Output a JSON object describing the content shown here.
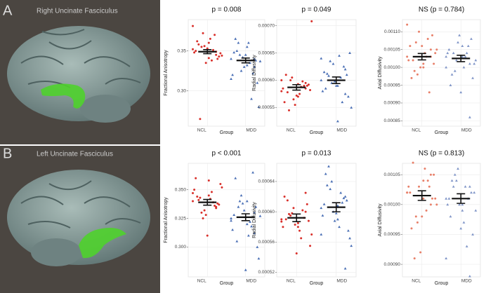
{
  "panels": [
    {
      "label": "A",
      "title": "Right Uncinate Fasciculus"
    },
    {
      "label": "B",
      "title": "Left Uncinate Fasciculus"
    }
  ],
  "chart_data": [
    {
      "type": "strip",
      "title": "p = 0.008",
      "ylabel": "Fractional Anisotropy",
      "xlabel": "Group",
      "categories": [
        "NCL",
        "MDD"
      ],
      "groups": [
        {
          "color": "#d9302b",
          "marker": "circle",
          "mean": 0.349,
          "se": 0.0025,
          "values": [
            0.352,
            0.345,
            0.36,
            0.355,
            0.348,
            0.34,
            0.365,
            0.372,
            0.35,
            0.343,
            0.338,
            0.356,
            0.362,
            0.347,
            0.351,
            0.335,
            0.358,
            0.344,
            0.37,
            0.353,
            0.265,
            0.381,
            0.349,
            0.341
          ]
        },
        {
          "color": "#4a6fb5",
          "marker": "triangle",
          "mean": 0.338,
          "se": 0.003,
          "values": [
            0.34,
            0.33,
            0.355,
            0.345,
            0.32,
            0.338,
            0.36,
            0.325,
            0.348,
            0.31,
            0.335,
            0.342,
            0.365,
            0.28,
            0.29,
            0.33,
            0.35,
            0.337,
            0.322,
            0.345,
            0.36,
            0.315,
            0.34,
            0.332
          ]
        }
      ],
      "ylim": [
        0.256,
        0.389
      ],
      "yticks": [
        {
          "value": 0.3,
          "label": "0.30"
        },
        0.35
      ],
      "grid": true
    },
    {
      "type": "strip",
      "title": "p = 0.049",
      "ylabel": "Radial Diffusivity",
      "xlabel": "Group",
      "categories": [
        "NCL",
        "MDD"
      ],
      "groups": [
        {
          "color": "#d9302b",
          "marker": "circle",
          "mean": 0.000587,
          "se": 5e-06,
          "values": [
            0.00058,
            0.000595,
            0.00057,
            0.0006,
            0.000585,
            0.00059,
            0.000575,
            0.000605,
            0.00056,
            0.000592,
            0.000588,
            0.000565,
            0.00061,
            0.000582,
            0.000598,
            0.000555,
            0.000578,
            0.000708,
            0.00059,
            0.000572,
            0.000545,
            0.0006,
            0.000585,
            0.000593
          ]
        },
        {
          "color": "#4a6fb5",
          "marker": "triangle",
          "mean": 0.0006,
          "se": 6e-06,
          "values": [
            0.0006,
            0.00062,
            0.00059,
            0.000635,
            0.00058,
            0.00061,
            0.000645,
            0.000595,
            0.000615,
            0.00057,
            0.000605,
            0.00063,
            0.000585,
            0.00065,
            0.00056,
            0.000598,
            0.000612,
            0.00055,
            0.000625,
            0.00059,
            0.000608,
            0.00064,
            0.000575,
            0.000525
          ]
        }
      ],
      "ylim": [
        0.000516,
        0.000711
      ],
      "yticks": [
        0.00055,
        {
          "value": 0.0006,
          "label": "0.00060"
        },
        0.00065,
        {
          "value": 0.0007,
          "label": "0.00070"
        }
      ],
      "grid": true
    },
    {
      "type": "strip",
      "title": "NS (p = 0.784)",
      "ylabel": "Axial Diffusivity",
      "xlabel": "Group",
      "categories": [
        "NCL",
        "MDD"
      ],
      "groups": [
        {
          "color": "#e8806a",
          "marker": "circle",
          "mean": 0.00103,
          "se": 9e-06,
          "values": [
            0.00103,
            0.00105,
            0.001,
            0.00107,
            0.00102,
            0.00109,
            0.00104,
            0.00098,
            0.00106,
            0.00101,
            0.00103,
            0.0011,
            0.00097,
            0.00104,
            0.00108,
            0.001,
            0.00102,
            0.00105,
            0.00093,
            0.00106,
            0.00099,
            0.00112,
            0.00103,
            0.00101
          ]
        },
        {
          "color": "#8196c8",
          "marker": "triangle",
          "mean": 0.001025,
          "se": 9e-06,
          "values": [
            0.00103,
            0.00101,
            0.00106,
            0.00099,
            0.00104,
            0.00108,
            0.001,
            0.00102,
            0.00105,
            0.00097,
            0.00103,
            0.00107,
            0.00095,
            0.00101,
            0.00104,
            0.00109,
            0.00098,
            0.00102,
            0.00106,
            0.00093,
            0.00104,
            0.001,
            0.00086,
            0.00103
          ]
        }
      ],
      "ylim": [
        0.000835,
        0.001134
      ],
      "yticks": [
        0.00085,
        {
          "value": 0.0009,
          "label": "0.00090"
        },
        0.00095,
        {
          "value": 0.001,
          "label": "0.00100"
        },
        0.00105,
        {
          "value": 0.0011,
          "label": "0.00110"
        }
      ],
      "grid": true
    },
    {
      "type": "strip",
      "title": "p < 0.001",
      "ylabel": "Fractional Anisotropy",
      "xlabel": "Group",
      "categories": [
        "NCL",
        "MDD"
      ],
      "groups": [
        {
          "color": "#d9302b",
          "marker": "circle",
          "mean": 0.339,
          "se": 0.0025,
          "values": [
            0.34,
            0.335,
            0.345,
            0.33,
            0.35,
            0.338,
            0.342,
            0.325,
            0.36,
            0.337,
            0.348,
            0.332,
            0.344,
            0.355,
            0.339,
            0.328,
            0.341,
            0.352,
            0.336,
            0.31,
            0.343,
            0.347,
            0.334,
            0.358
          ]
        },
        {
          "color": "#4a6fb5",
          "marker": "triangle",
          "mean": 0.326,
          "se": 0.003,
          "values": [
            0.325,
            0.33,
            0.32,
            0.34,
            0.315,
            0.335,
            0.31,
            0.345,
            0.328,
            0.3,
            0.322,
            0.338,
            0.36,
            0.29,
            0.318,
            0.332,
            0.305,
            0.327,
            0.365,
            0.28,
            0.335,
            0.323,
            0.312,
            0.34
          ]
        }
      ],
      "ylim": [
        0.274,
        0.373
      ],
      "yticks": [
        {
          "value": 0.3,
          "label": "0.300"
        },
        0.325,
        {
          "value": 0.35,
          "label": "0.350"
        }
      ],
      "grid": true
    },
    {
      "type": "strip",
      "title": "p = 0.013",
      "ylabel": "Radial Diffusivity",
      "xlabel": "Group",
      "categories": [
        "NCL",
        "MDD"
      ],
      "groups": [
        {
          "color": "#d9302b",
          "marker": "circle",
          "mean": 0.000592,
          "se": 5e-06,
          "values": [
            0.00059,
            0.0006,
            0.000585,
            0.000595,
            0.00058,
            0.00061,
            0.000575,
            0.000598,
            0.00062,
            0.000588,
            0.000565,
            0.000605,
            0.00059,
            0.000555,
            0.000602,
            0.000583,
            0.000615,
            0.00057,
            0.000592,
            0.000545,
            0.000597,
            0.000587,
            0.000625,
            0.00058
          ]
        },
        {
          "color": "#4a6fb5",
          "marker": "triangle",
          "mean": 0.000606,
          "se": 6e-06,
          "values": [
            0.000605,
            0.00062,
            0.00059,
            0.00063,
            0.000595,
            0.000615,
            0.00058,
            0.00064,
            0.00061,
            0.000575,
            0.000625,
            0.0006,
            0.00065,
            0.000565,
            0.000612,
            0.000588,
            0.000635,
            0.000555,
            0.000618,
            0.000598,
            0.00066,
            0.00057,
            0.000525,
            0.000608
          ]
        }
      ],
      "ylim": [
        0.000514,
        0.000664
      ],
      "yticks": [
        0.00052,
        0.00056,
        {
          "value": 0.0006,
          "label": "0.00060"
        },
        0.00064
      ],
      "grid": true
    },
    {
      "type": "strip",
      "title": "NS (p = 0.813)",
      "ylabel": "Axial Diffusivity",
      "xlabel": "Group",
      "categories": [
        "NCL",
        "MDD"
      ],
      "groups": [
        {
          "color": "#e8806a",
          "marker": "circle",
          "mean": 0.001015,
          "se": 8e-06,
          "values": [
            0.00102,
            0.001,
            0.00104,
            0.00098,
            0.00103,
            0.00101,
            0.00106,
            0.00097,
            0.00102,
            0.00105,
            0.00099,
            0.00103,
            0.00096,
            0.00101,
            0.00104,
            0.00092,
            0.00107,
            0.001,
            0.00103,
            0.00098,
            0.00091,
            0.00102,
            0.00105,
            0.00101
          ]
        },
        {
          "color": "#8196c8",
          "marker": "triangle",
          "mean": 0.00101,
          "se": 8e-06,
          "values": [
            0.00101,
            0.00103,
            0.00099,
            0.00105,
            0.001,
            0.00102,
            0.00097,
            0.00104,
            0.00101,
            0.00095,
            0.00103,
            0.00106,
            0.00098,
            0.00102,
            0.00093,
            0.001,
            0.00104,
            0.00099,
            0.00101,
            0.00096,
            0.00103,
            0.00091,
            0.00088,
            0.001
          ]
        }
      ],
      "ylim": [
        0.000879,
        0.001069
      ],
      "yticks": [
        {
          "value": 0.0009,
          "label": "0.00090"
        },
        0.00095,
        {
          "value": 0.001,
          "label": "0.00100"
        },
        0.00105
      ],
      "grid": true
    }
  ]
}
